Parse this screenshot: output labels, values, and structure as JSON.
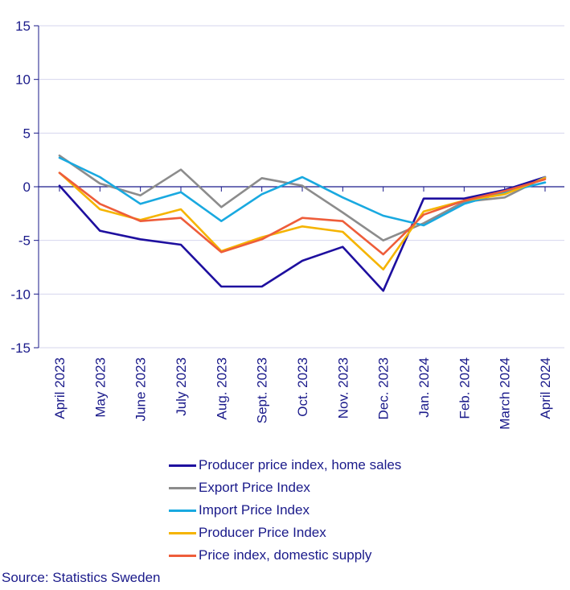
{
  "chart_data": {
    "type": "line",
    "title": "",
    "xlabel": "",
    "ylabel": "",
    "ylim": [
      -15,
      15
    ],
    "yticks": [
      "15",
      "10",
      "5",
      "0",
      "-5",
      "-10",
      "-15"
    ],
    "ytick_values": [
      15,
      10,
      5,
      0,
      -5,
      -10,
      -15
    ],
    "categories": [
      "April 2023",
      "May 2023",
      "June 2023",
      "July 2023",
      "Aug. 2023",
      "Sept. 2023",
      "Oct. 2023",
      "Nov. 2023",
      "Dec. 2023",
      "Jan. 2024",
      "Feb. 2024",
      "March 2024",
      "April 2024"
    ],
    "series": [
      {
        "name": "Producer price index, home sales",
        "color": "#1e0f9f",
        "values": [
          0.1,
          -4.1,
          -4.9,
          -5.4,
          -9.3,
          -9.3,
          -6.9,
          -5.6,
          -9.7,
          -1.1,
          -1.1,
          -0.3,
          0.9
        ]
      },
      {
        "name": "Export Price Index",
        "color": "#8c8c8c",
        "values": [
          2.9,
          0.3,
          -0.8,
          1.6,
          -1.9,
          0.8,
          0.1,
          -2.4,
          -5.0,
          -3.4,
          -1.4,
          -1.0,
          0.9
        ]
      },
      {
        "name": "Import Price Index",
        "color": "#19a9e0",
        "values": [
          2.7,
          0.9,
          -1.6,
          -0.5,
          -3.2,
          -0.7,
          0.9,
          -1.0,
          -2.7,
          -3.6,
          -1.6,
          -0.5,
          0.4
        ]
      },
      {
        "name": "Producer Price Index",
        "color": "#f5b400",
        "values": [
          1.3,
          -2.1,
          -3.1,
          -2.1,
          -6.0,
          -4.7,
          -3.7,
          -4.2,
          -7.7,
          -2.3,
          -1.3,
          -0.7,
          0.8
        ]
      },
      {
        "name": "Price index, domestic supply",
        "color": "#ee5d3a",
        "values": [
          1.3,
          -1.6,
          -3.2,
          -2.9,
          -6.1,
          -4.9,
          -2.9,
          -3.2,
          -6.3,
          -2.6,
          -1.3,
          -0.4,
          0.7
        ]
      }
    ],
    "legend_position": "bottom",
    "grid": true
  },
  "source": "Source: Statistics Sweden"
}
